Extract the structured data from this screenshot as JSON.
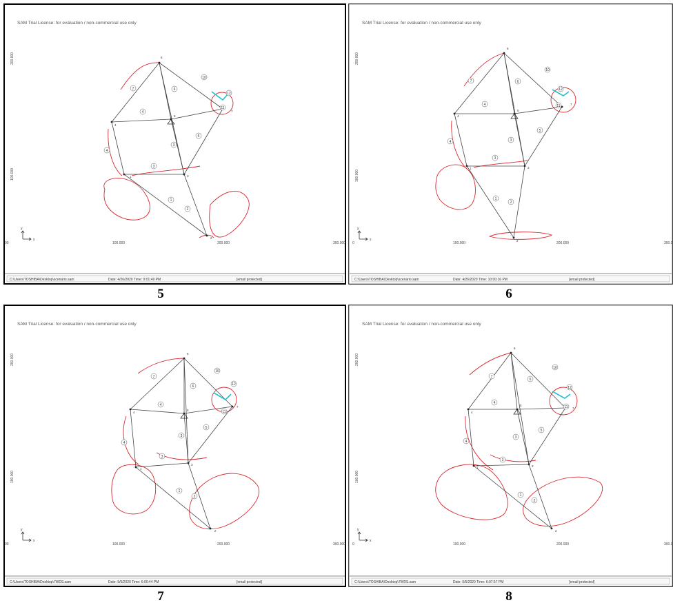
{
  "panels": [
    {
      "caption": "5",
      "license_text": "SAM Trial License: for evaluation / non-commercial use only",
      "x_ticks": [
        "00",
        "100.000",
        "200.000",
        "300.000"
      ],
      "y_ticks": [
        "200.000",
        "100.000"
      ],
      "axis_x": "x",
      "axis_y": "y",
      "status": {
        "file": "C:\\Users\\TOSHIBA\\Desktop\\scenario.sam",
        "date": "Date: 4/26/2020   Time: 9:01:49 PM",
        "email": "[email protected]"
      }
    },
    {
      "caption": "6",
      "license_text": "SAM Trial License: for evaluation / non-commercial use only",
      "x_ticks": [
        "0",
        "100.000",
        "200.000",
        "300.000"
      ],
      "y_ticks": [
        "200.000",
        "100.000"
      ],
      "axis_x": "x",
      "axis_y": "y",
      "status": {
        "file": "C:\\Users\\TOSHIBA\\Desktop\\scenario.sam",
        "date": "Date: 4/26/2020   Time: 10:00:16 PM",
        "email": "[email protected]"
      }
    },
    {
      "caption": "7",
      "license_text": "SAM Trial License: for evaluation / non-commercial use only",
      "x_ticks": [
        "00",
        "100.000",
        "200.000",
        "300.000"
      ],
      "y_ticks": [
        "200.000",
        "100.000"
      ],
      "axis_x": "x",
      "axis_y": "y",
      "status": {
        "file": "C:\\Users\\TOSHIBA\\Desktop\\7WDS.sam",
        "date": "Date: 5/5/2020   Time: 6:00:44 PM",
        "email": "[email protected]"
      }
    },
    {
      "caption": "8",
      "license_text": "SAM Trial License: for evaluation / non-commercial use only",
      "x_ticks": [
        "0",
        "100.000",
        "200.000",
        "300.000"
      ],
      "y_ticks": [
        "200.000",
        "100.000"
      ],
      "axis_x": "x",
      "axis_y": "y",
      "status": {
        "file": "C:\\Users\\TOSHIBA\\Desktop\\7WDS.sam",
        "date": "Date: 5/5/2020   Time: 6:07:57 PM",
        "email": "[email protected]"
      }
    }
  ],
  "colors": {
    "links": "#444444",
    "coupler_curve": "#d9272e",
    "cyan_link": "#22c0cf",
    "frame": "#000000"
  },
  "node_labels": [
    "1",
    "2",
    "3",
    "4",
    "5",
    "6",
    "7",
    "8",
    "9",
    "10",
    "11",
    "12"
  ]
}
